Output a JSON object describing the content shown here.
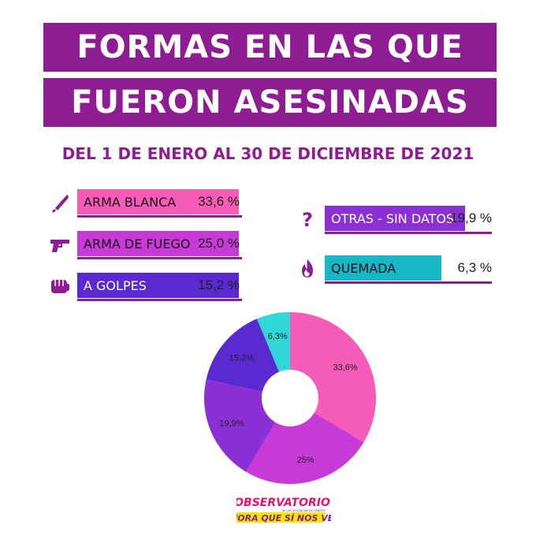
{
  "title": {
    "line1": "FORMAS EN LAS QUE",
    "line2": "FUERON ASESINADAS"
  },
  "subtitle": "DEL 1 DE ENERO AL 30 DE DICIEMBRE DE 2021",
  "legend": [
    {
      "label": "ARMA BLANCA",
      "value_text": "33,6 %",
      "color": "#f45cb8",
      "icon": "knife-icon"
    },
    {
      "label": "ARMA DE FUEGO",
      "value_text": "25,0 %",
      "color": "#c83ad6",
      "icon": "gun-icon"
    },
    {
      "label": "A GOLPES",
      "value_text": "15,2 %",
      "color": "#5a2ad0",
      "icon": "fist-icon"
    },
    {
      "label": "OTRAS - SIN DATOS",
      "value_text": "19,9 %",
      "color": "#8b30d4",
      "icon": "question-mark-icon"
    },
    {
      "label": "QUEMADA",
      "value_text": "6,3 %",
      "color": "#17c3d0",
      "icon": "fire-icon"
    }
  ],
  "chart_data": {
    "type": "pie",
    "categories": [
      "ARMA BLANCA",
      "ARMA DE FUEGO",
      "OTRAS - SIN DATOS",
      "A GOLPES",
      "QUEMADA"
    ],
    "values": [
      33.6,
      25.0,
      19.9,
      15.2,
      6.3
    ],
    "data_labels": [
      "33,6%",
      "25%",
      "19,9%",
      "15,2%",
      "6,3%"
    ],
    "colors": [
      "#f45cb8",
      "#c83ad6",
      "#8b30d4",
      "#5a2ad0",
      "#30d6d8"
    ],
    "donut": true
  },
  "logo": {
    "line1": "OBSERVATORIO",
    "line2": "DE LAS VIOLENCIAS DE GÉNERO",
    "line3": "AHORA QUE SÍ NOS VEN"
  },
  "accent_color": "#8e1c93"
}
